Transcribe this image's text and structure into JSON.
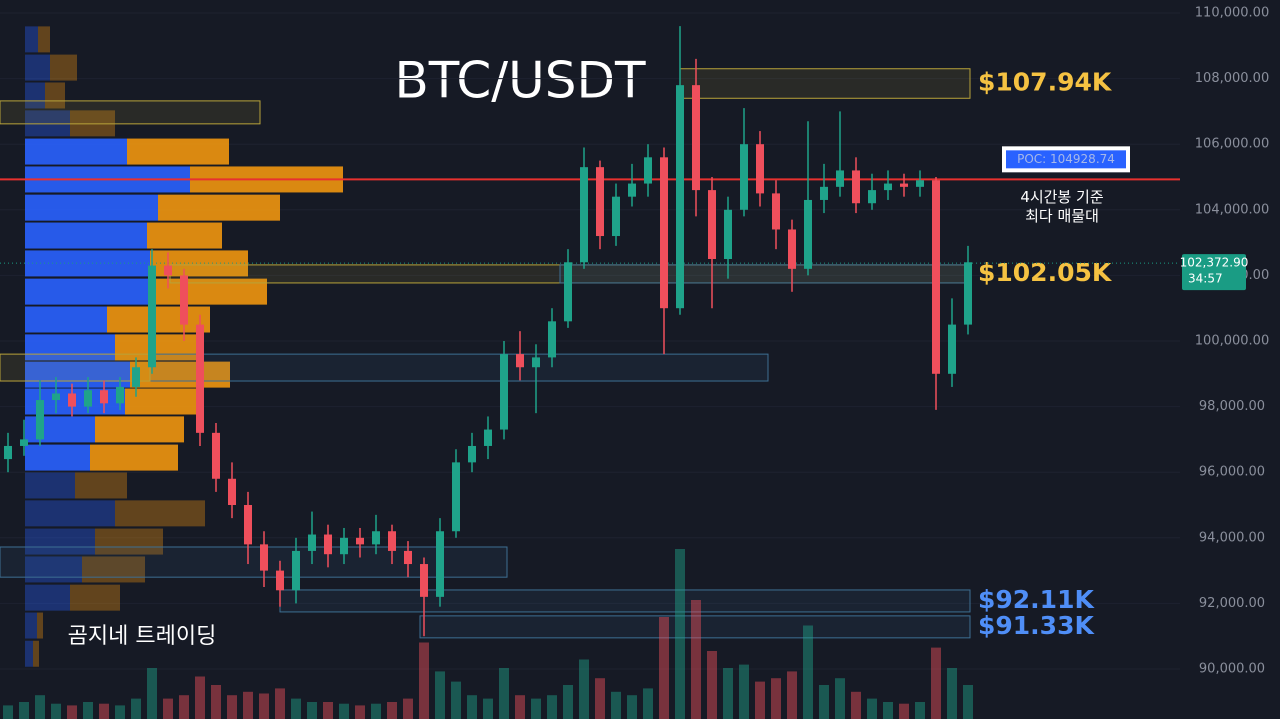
{
  "chart_data": {
    "type": "candlestick",
    "title": "BTC/USDT",
    "watermark": "곰지네 트레이딩",
    "up_color": "#1fa38a",
    "down_color": "#ef4f5c",
    "ylim": [
      88476,
      110396
    ],
    "yticks": [
      {
        "value": 90000,
        "label": "90,000.00"
      },
      {
        "value": 92000,
        "label": "92,000.00"
      },
      {
        "value": 94000,
        "label": "94,000.00"
      },
      {
        "value": 96000,
        "label": "96,000.00"
      },
      {
        "value": 98000,
        "label": "98,000.00"
      },
      {
        "value": 100000,
        "label": "100,000.00"
      },
      {
        "value": 102000,
        "label": "102,000.00"
      },
      {
        "value": 104000,
        "label": "104,000.00"
      },
      {
        "value": 106000,
        "label": "106,000.00"
      },
      {
        "value": 108000,
        "label": "108,000.00"
      },
      {
        "value": 110000,
        "label": "110,000.00"
      }
    ],
    "candles": [
      [
        96400,
        97200,
        96000,
        96800
      ],
      [
        96800,
        97600,
        96500,
        97000
      ],
      [
        97000,
        98800,
        96800,
        98200
      ],
      [
        98200,
        98900,
        97800,
        98400
      ],
      [
        98400,
        98700,
        97700,
        98000
      ],
      [
        98000,
        98900,
        97800,
        98500
      ],
      [
        98500,
        98800,
        97800,
        98100
      ],
      [
        98100,
        98900,
        97900,
        98600
      ],
      [
        98600,
        99500,
        98300,
        99200
      ],
      [
        99200,
        102800,
        99000,
        102300
      ],
      [
        102300,
        102700,
        101600,
        102000
      ],
      [
        102000,
        102200,
        100000,
        100500
      ],
      [
        100500,
        100800,
        96800,
        97200
      ],
      [
        97200,
        97500,
        95400,
        95800
      ],
      [
        95800,
        96300,
        94600,
        95000
      ],
      [
        95000,
        95400,
        93200,
        93800
      ],
      [
        93800,
        94200,
        92500,
        93000
      ],
      [
        93000,
        93300,
        91900,
        92400
      ],
      [
        92400,
        94000,
        92000,
        93600
      ],
      [
        93600,
        94800,
        93200,
        94100
      ],
      [
        94100,
        94400,
        93100,
        93500
      ],
      [
        93500,
        94300,
        93200,
        94000
      ],
      [
        94000,
        94300,
        93400,
        93800
      ],
      [
        93800,
        94700,
        93500,
        94200
      ],
      [
        94200,
        94400,
        93200,
        93600
      ],
      [
        93600,
        93900,
        92800,
        93200
      ],
      [
        93200,
        93400,
        91000,
        92200
      ],
      [
        92200,
        94600,
        91900,
        94200
      ],
      [
        94200,
        96700,
        94000,
        96300
      ],
      [
        96300,
        97200,
        96000,
        96800
      ],
      [
        96800,
        97700,
        96400,
        97300
      ],
      [
        97300,
        100000,
        97000,
        99600
      ],
      [
        99600,
        100300,
        98800,
        99200
      ],
      [
        99200,
        99900,
        97800,
        99500
      ],
      [
        99500,
        101000,
        99200,
        100600
      ],
      [
        100600,
        102800,
        100400,
        102400
      ],
      [
        102400,
        105900,
        102200,
        105300
      ],
      [
        105300,
        105500,
        102800,
        103200
      ],
      [
        103200,
        104800,
        102900,
        104400
      ],
      [
        104400,
        105400,
        104100,
        104800
      ],
      [
        104800,
        106000,
        104400,
        105600
      ],
      [
        105600,
        105900,
        99600,
        101000
      ],
      [
        101000,
        109600,
        100800,
        107800
      ],
      [
        107800,
        108600,
        103800,
        104600
      ],
      [
        104600,
        105000,
        101000,
        102500
      ],
      [
        102500,
        104400,
        101900,
        104000
      ],
      [
        104000,
        107100,
        103800,
        106000
      ],
      [
        106000,
        106400,
        104100,
        104500
      ],
      [
        104500,
        104900,
        102800,
        103400
      ],
      [
        103400,
        103700,
        101500,
        102200
      ],
      [
        102200,
        106700,
        102000,
        104300
      ],
      [
        104300,
        105400,
        103900,
        104700
      ],
      [
        104700,
        107000,
        104400,
        105200
      ],
      [
        105200,
        105600,
        103900,
        104200
      ],
      [
        104200,
        105100,
        104000,
        104600
      ],
      [
        104600,
        105200,
        104300,
        104800
      ],
      [
        104800,
        105100,
        104400,
        104700
      ],
      [
        104700,
        105200,
        104400,
        104900
      ],
      [
        104900,
        105000,
        97900,
        99000
      ],
      [
        99000,
        101300,
        98600,
        100500
      ],
      [
        100500,
        102900,
        100200,
        102400
      ]
    ],
    "volume": [
      8,
      10,
      14,
      9,
      8,
      10,
      9,
      8,
      12,
      30,
      12,
      14,
      25,
      20,
      14,
      16,
      15,
      18,
      12,
      10,
      10,
      9,
      8,
      9,
      10,
      12,
      45,
      28,
      22,
      14,
      12,
      30,
      14,
      12,
      14,
      20,
      35,
      24,
      16,
      14,
      18,
      60,
      100,
      70,
      40,
      30,
      32,
      22,
      24,
      28,
      55,
      20,
      24,
      16,
      12,
      10,
      9,
      10,
      42,
      30,
      20
    ],
    "volume_profile": {
      "levels": [
        109180,
        108320,
        107470,
        106620,
        105760,
        104910,
        104050,
        103200,
        102350,
        101490,
        100640,
        99790,
        98960,
        98140,
        97290,
        96430,
        95580,
        94730,
        93870,
        93020,
        92160,
        91310,
        90450
      ],
      "buy": [
        13,
        25,
        20,
        45,
        102,
        165,
        133,
        122,
        125,
        130,
        82,
        90,
        105,
        100,
        70,
        65,
        50,
        90,
        70,
        57,
        45,
        12,
        8
      ],
      "sell": [
        12,
        27,
        20,
        45,
        102,
        153,
        122,
        75,
        98,
        112,
        103,
        82,
        100,
        78,
        89,
        88,
        52,
        90,
        68,
        63,
        50,
        6,
        6
      ],
      "buy_color": "#2962ff",
      "sell_color": "#f0960f",
      "value_area": [
        96000,
        106000
      ]
    },
    "zones": [
      {
        "top": 108300,
        "bottom": 107400,
        "color": "#b8a33a",
        "label": "$107.94K"
      },
      {
        "top": 102320,
        "bottom": 101770,
        "color": "#b8a33a",
        "label": "$102.05K"
      },
      {
        "top": 102320,
        "bottom": 101770,
        "color": "#3d6f93"
      },
      {
        "top": 99600,
        "bottom": 98780,
        "color": "#3d6f93"
      },
      {
        "top": 99600,
        "bottom": 98780,
        "color": "#b8a33a"
      },
      {
        "top": 107320,
        "bottom": 106620,
        "color": "#b8a33a"
      },
      {
        "top": 93720,
        "bottom": 92800,
        "color": "#3d6f93"
      },
      {
        "top": 92410,
        "bottom": 91740,
        "color": "#3d6f93",
        "label": "$92.11K"
      },
      {
        "top": 91620,
        "bottom": 90950,
        "color": "#3d6f93",
        "label": "$91.33K"
      }
    ],
    "poc": {
      "value": 104928.74,
      "label": "POC: 104928.74",
      "color": "#e8312f",
      "note": [
        "4시간봉 기준",
        "최다 매물대"
      ]
    },
    "last_price": {
      "value": 102372.9,
      "label": "102,372.90",
      "countdown": "34:57",
      "color": "#1a9c84"
    }
  }
}
